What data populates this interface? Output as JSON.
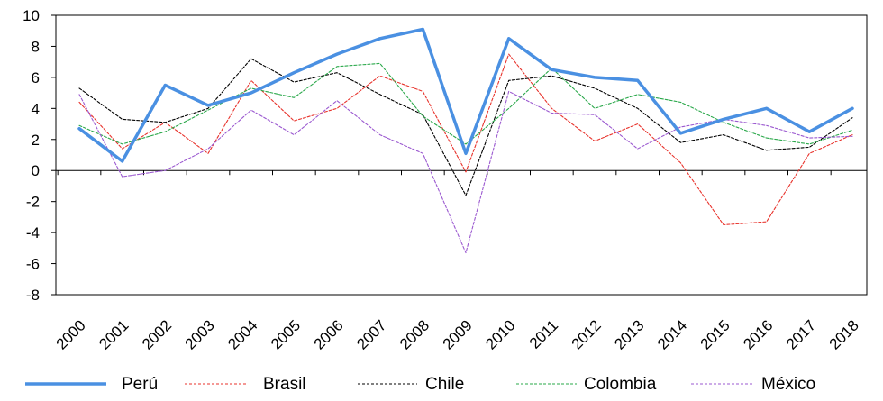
{
  "chart_data": {
    "type": "line",
    "title": "",
    "xlabel": "",
    "ylabel": "",
    "ylim": [
      -8,
      10
    ],
    "yticks": [
      10,
      8,
      6,
      4,
      2,
      0,
      -2,
      -4,
      -6,
      -8
    ],
    "yticklabels": [
      "10",
      "8",
      "6",
      "4",
      "2",
      "0",
      "-2",
      "-4",
      "-6",
      "-8"
    ],
    "grid": false,
    "legend": "bottom",
    "categories": [
      "2000",
      "2001",
      "2002",
      "2003",
      "2004",
      "2005",
      "2006",
      "2007",
      "2008",
      "2009",
      "2010",
      "2011",
      "2012",
      "2013",
      "2014",
      "2015",
      "2016",
      "2017",
      "2018"
    ],
    "series": [
      {
        "name": "Perú",
        "color": "#4a90e2",
        "style": "solid",
        "values": [
          2.7,
          0.6,
          5.5,
          4.2,
          5.0,
          6.3,
          7.5,
          8.5,
          9.1,
          1.1,
          8.5,
          6.5,
          6.0,
          5.8,
          2.4,
          3.3,
          4.0,
          2.5,
          4.0
        ]
      },
      {
        "name": "Brasil",
        "color": "#e8322b",
        "style": "dashed",
        "values": [
          4.4,
          1.4,
          3.1,
          1.1,
          5.8,
          3.2,
          4.0,
          6.1,
          5.1,
          -0.1,
          7.5,
          4.0,
          1.9,
          3.0,
          0.5,
          -3.5,
          -3.3,
          1.1,
          2.3
        ]
      },
      {
        "name": "Chile",
        "color": "#000000",
        "style": "dashed",
        "values": [
          5.3,
          3.3,
          3.1,
          4.0,
          7.2,
          5.7,
          6.3,
          4.9,
          3.6,
          -1.6,
          5.8,
          6.1,
          5.3,
          4.0,
          1.8,
          2.3,
          1.3,
          1.5,
          3.4
        ]
      },
      {
        "name": "Colombia",
        "color": "#2aa84a",
        "style": "dashed",
        "values": [
          2.9,
          1.7,
          2.5,
          3.9,
          5.3,
          4.7,
          6.7,
          6.9,
          3.5,
          1.7,
          4.0,
          6.6,
          4.0,
          4.9,
          4.4,
          3.1,
          2.1,
          1.7,
          2.6
        ]
      },
      {
        "name": "México",
        "color": "#9b59d0",
        "style": "dashed",
        "values": [
          4.9,
          -0.4,
          0.0,
          1.4,
          3.9,
          2.3,
          4.5,
          2.3,
          1.1,
          -5.3,
          5.1,
          3.7,
          3.6,
          1.4,
          2.8,
          3.3,
          2.9,
          2.1,
          2.2
        ]
      }
    ]
  }
}
